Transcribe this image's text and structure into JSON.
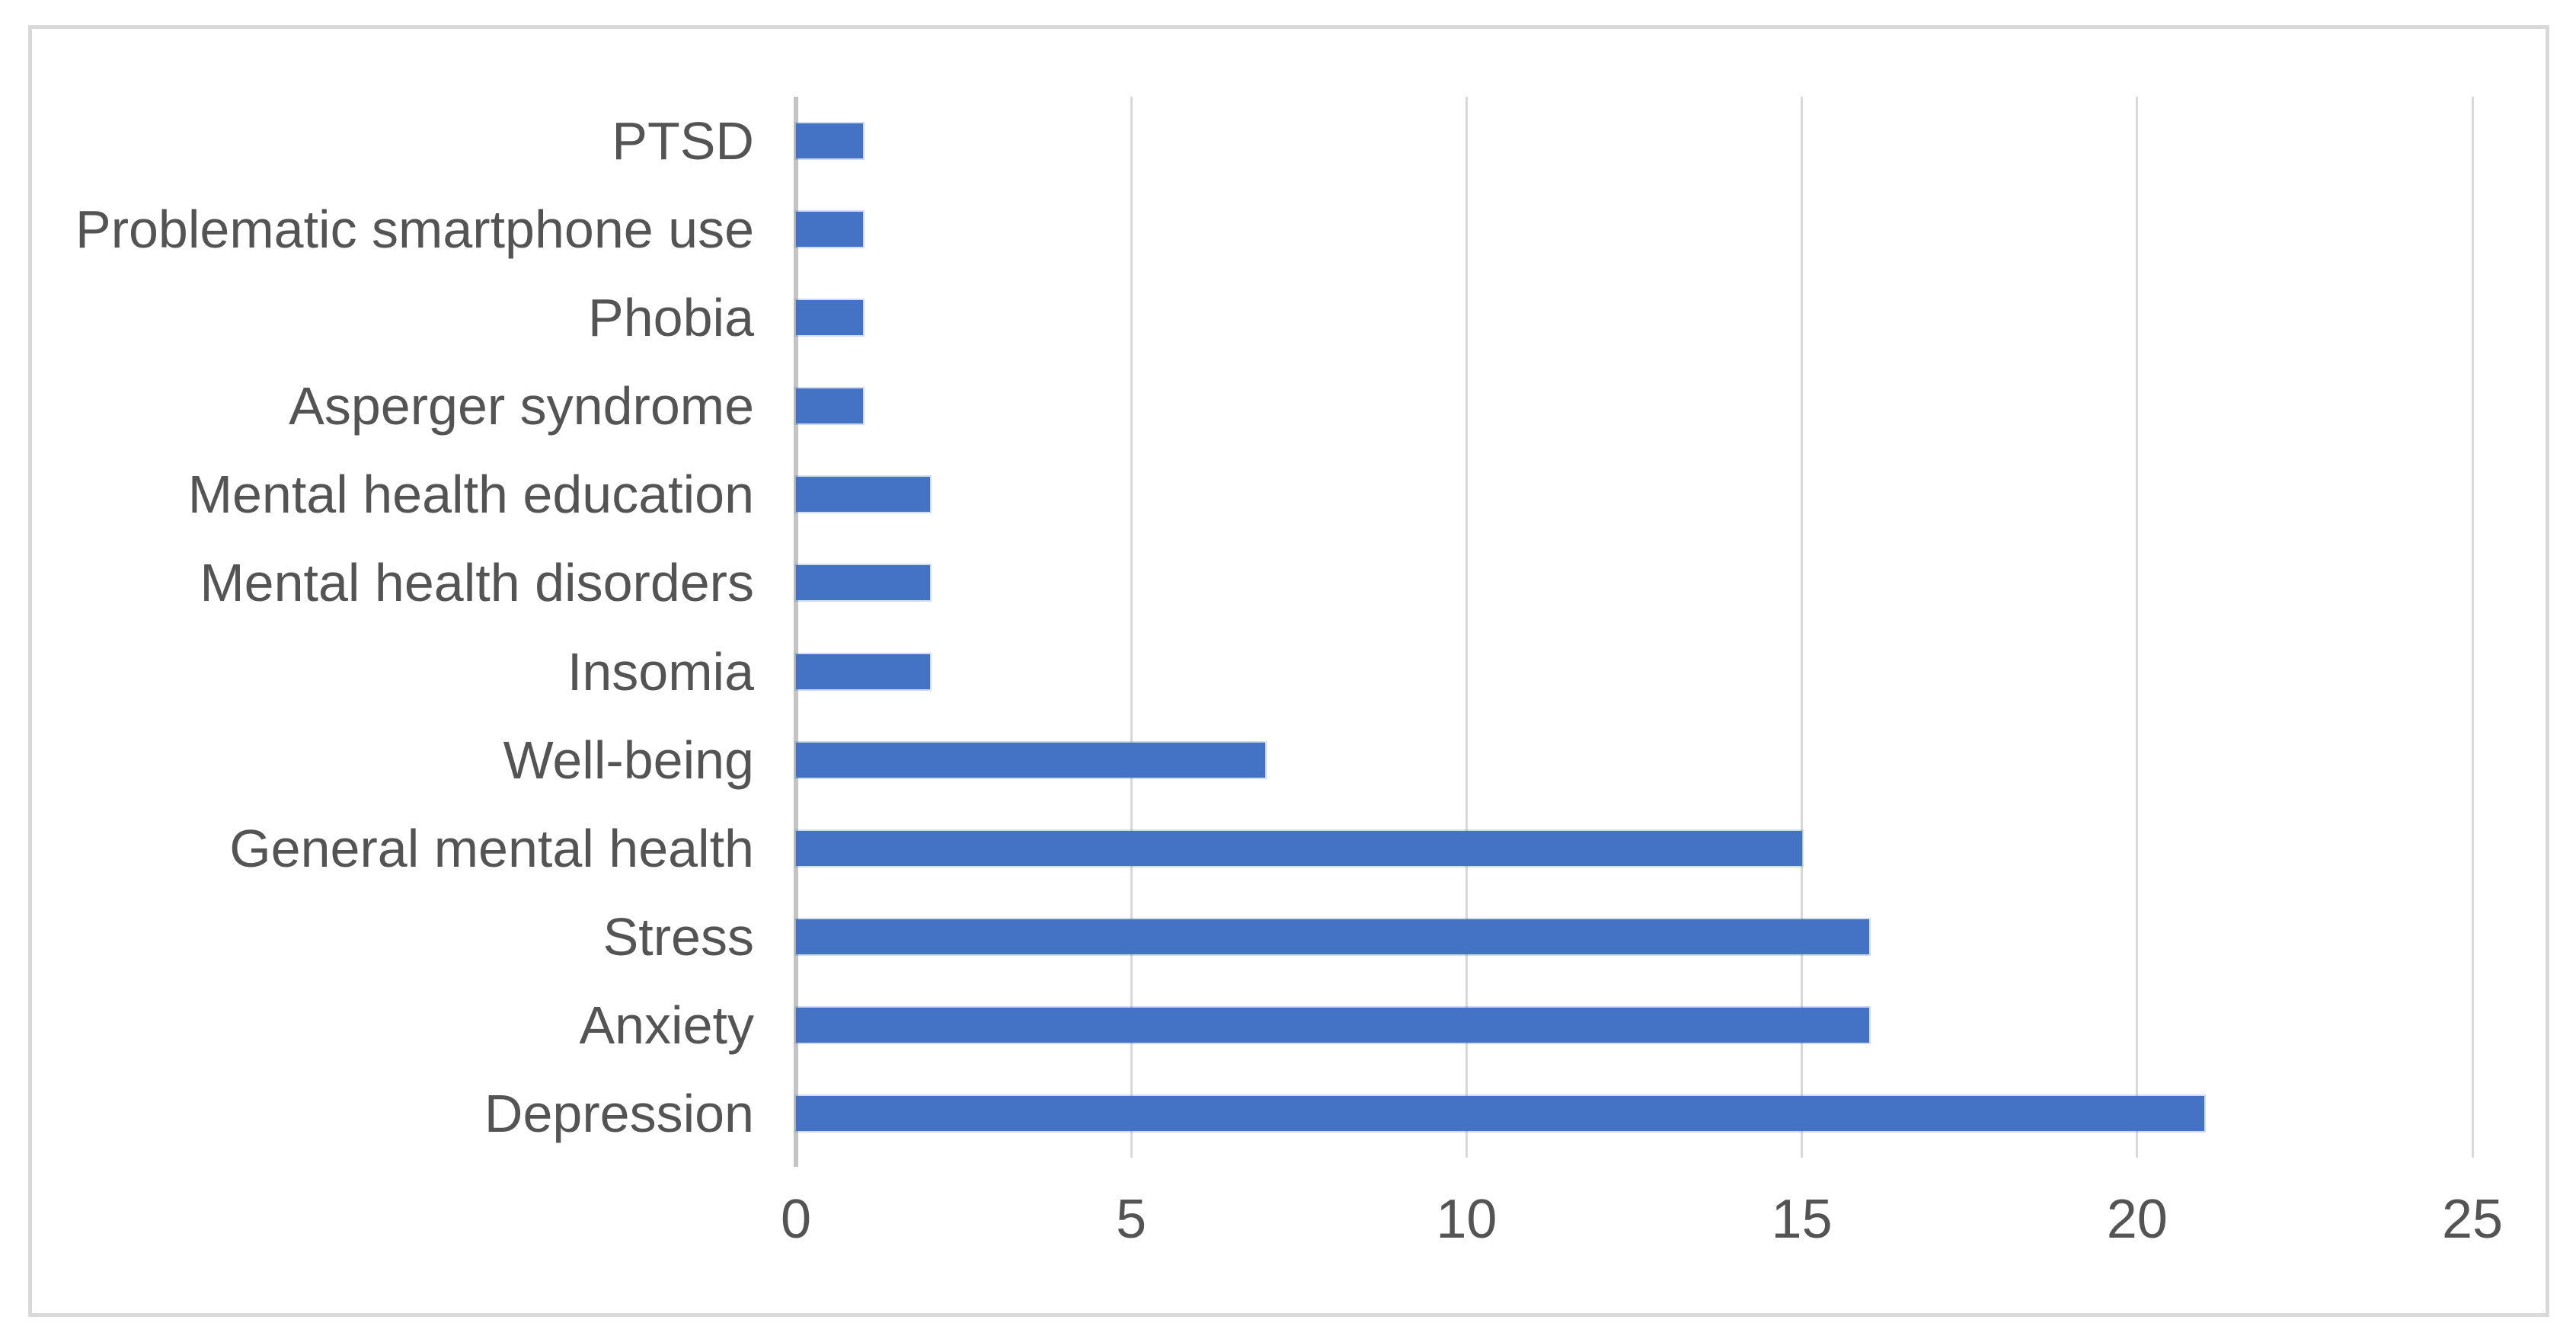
{
  "chart_data": {
    "type": "bar",
    "orientation": "horizontal",
    "title": "",
    "xlabel": "",
    "ylabel": "",
    "categories_top_to_bottom": [
      "PTSD",
      "Problematic smartphone use",
      "Phobia",
      "Asperger syndrome",
      "Mental health education",
      "Mental health disorders",
      "Insomia",
      "Well-being",
      "General mental health",
      "Stress",
      "Anxiety",
      "Depression"
    ],
    "values": [
      1,
      1,
      1,
      1,
      2,
      2,
      2,
      7,
      15,
      16,
      16,
      21
    ],
    "xticks": [
      0,
      5,
      10,
      15,
      20,
      25
    ],
    "xlim": [
      0,
      25
    ],
    "grid": "vertical-gridlines-on",
    "legend": "none",
    "colors": {
      "bar": "#4472c4",
      "gridline": "#d9d9d9",
      "axis_line": "#c4c4c4",
      "text": "#545454",
      "frame_border": "#d9d9d9",
      "background": "#ffffff"
    }
  }
}
